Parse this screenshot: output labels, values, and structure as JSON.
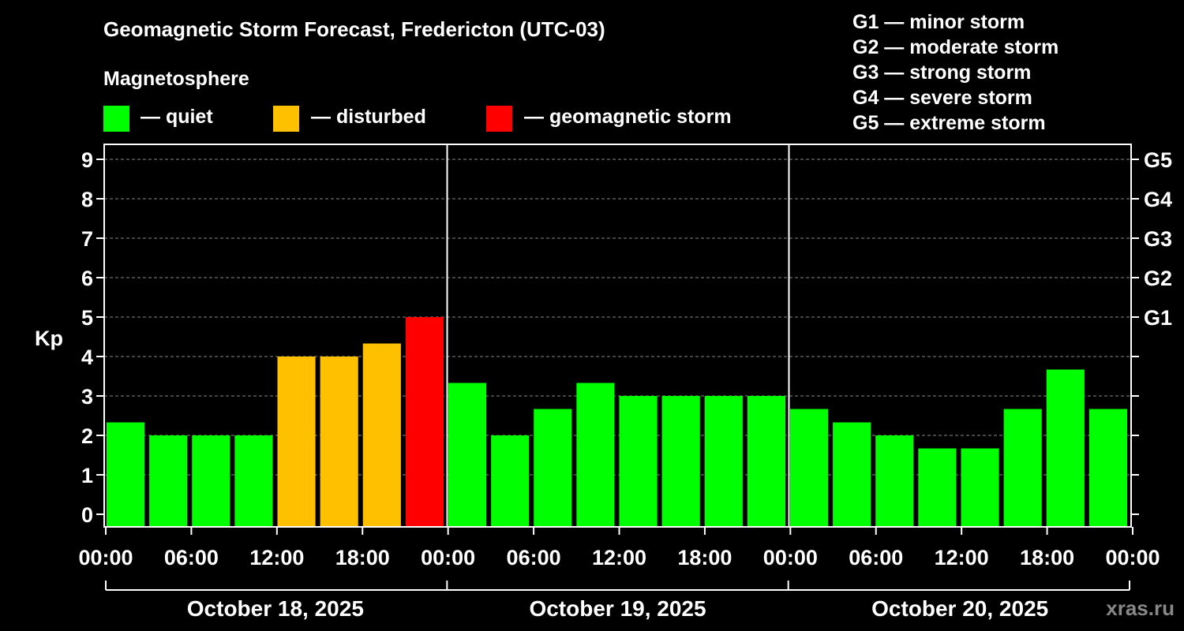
{
  "title": "Geomagnetic Storm Forecast, Fredericton (UTC-03)",
  "magnetosphere_label": "Magnetosphere",
  "legend": [
    {
      "label": "— quiet",
      "color": "#00ff00"
    },
    {
      "label": "— disturbed",
      "color": "#ffc000"
    },
    {
      "label": "— geomagnetic storm",
      "color": "#ff0000"
    }
  ],
  "g_levels": [
    "G1 — minor storm",
    "G2 — moderate storm",
    "G3 — strong storm",
    "G4 — severe storm",
    "G5 — extreme storm"
  ],
  "watermark": "xras.ru",
  "colors": {
    "quiet": "#00ff00",
    "disturbed": "#ffc000",
    "storm": "#ff0000",
    "grid": "#888888",
    "axis": "#ffffff"
  },
  "chart_data": {
    "type": "bar",
    "title": "Geomagnetic Storm Forecast, Fredericton (UTC-03)",
    "ylabel": "Kp",
    "ylim": [
      0,
      9
    ],
    "y_ticks": [
      "0",
      "1",
      "2",
      "3",
      "4",
      "5",
      "6",
      "7",
      "8",
      "9"
    ],
    "right_ticks": [
      {
        "kp": 5,
        "label": "G1"
      },
      {
        "kp": 6,
        "label": "G2"
      },
      {
        "kp": 7,
        "label": "G3"
      },
      {
        "kp": 8,
        "label": "G4"
      },
      {
        "kp": 9,
        "label": "G5"
      }
    ],
    "x_tick_labels": [
      "00:00",
      "06:00",
      "12:00",
      "18:00",
      "00:00",
      "06:00",
      "12:00",
      "18:00",
      "00:00",
      "06:00",
      "12:00",
      "18:00",
      "00:00"
    ],
    "days": [
      "October 18, 2025",
      "October 19, 2025",
      "October 20, 2025"
    ],
    "bin_hours": 3,
    "values": [
      2.33,
      2.0,
      2.0,
      2.0,
      4.0,
      4.0,
      4.33,
      5.0,
      3.33,
      2.0,
      2.67,
      3.33,
      3.0,
      3.0,
      3.0,
      3.0,
      2.67,
      2.33,
      2.0,
      1.67,
      1.67,
      2.67,
      3.67,
      2.67
    ],
    "categories": [
      "quiet",
      "quiet",
      "quiet",
      "quiet",
      "disturbed",
      "disturbed",
      "disturbed",
      "storm",
      "quiet",
      "quiet",
      "quiet",
      "quiet",
      "quiet",
      "quiet",
      "quiet",
      "quiet",
      "quiet",
      "quiet",
      "quiet",
      "quiet",
      "quiet",
      "quiet",
      "quiet",
      "quiet"
    ],
    "grid": true
  }
}
